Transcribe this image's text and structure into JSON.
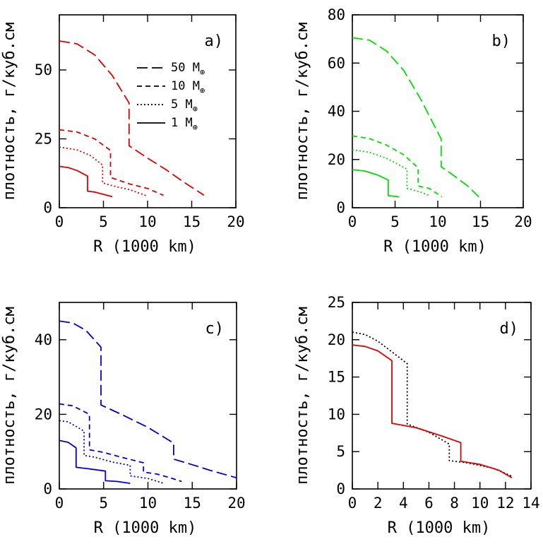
{
  "figure": {
    "background": "#ffffff"
  },
  "chart_data": [
    {
      "id": "a",
      "type": "line",
      "panel_label": "a)",
      "xlabel": "R (1000 km)",
      "ylabel": "плотность, г/куб.см",
      "xlim": [
        0,
        20
      ],
      "ylim": [
        0,
        70
      ],
      "xticks": [
        0,
        5,
        10,
        15,
        20
      ],
      "yticks": [
        0,
        25,
        50
      ],
      "color": "#e00000",
      "legend": {
        "placement": "right",
        "entries": [
          {
            "style": "longdash",
            "label": "50 M",
            "sub": "⊕"
          },
          {
            "style": "dash",
            "label": "10 M",
            "sub": "⊕"
          },
          {
            "style": "dot",
            "label": "5 M",
            "sub": "⊕"
          },
          {
            "style": "solid",
            "label": "1 M",
            "sub": "⊕"
          }
        ]
      },
      "series": [
        {
          "style": "longdash",
          "points": [
            [
              0,
              60.5
            ],
            [
              2,
              59.5
            ],
            [
              4,
              55.5
            ],
            [
              6,
              48
            ],
            [
              7.9,
              38
            ],
            [
              7.9,
              22.5
            ],
            [
              10,
              18
            ],
            [
              12,
              14
            ],
            [
              14,
              9.5
            ],
            [
              16.4,
              4.5
            ]
          ]
        },
        {
          "style": "dash",
          "points": [
            [
              0,
              28.3
            ],
            [
              2,
              27.5
            ],
            [
              4,
              25
            ],
            [
              5.8,
              20.8
            ],
            [
              5.8,
              11
            ],
            [
              8,
              8.6
            ],
            [
              10,
              7
            ],
            [
              11.8,
              4.5
            ]
          ]
        },
        {
          "style": "dot",
          "points": [
            [
              0,
              22
            ],
            [
              2,
              21
            ],
            [
              3.5,
              19
            ],
            [
              4.9,
              15.5
            ],
            [
              4.9,
              9
            ],
            [
              6,
              8
            ],
            [
              8,
              6.5
            ],
            [
              10,
              4.2
            ]
          ]
        },
        {
          "style": "solid",
          "points": [
            [
              0,
              15
            ],
            [
              1,
              14.6
            ],
            [
              2,
              13.5
            ],
            [
              3.2,
              11.5
            ],
            [
              3.2,
              6
            ],
            [
              4,
              5.7
            ],
            [
              6,
              4
            ]
          ]
        }
      ]
    },
    {
      "id": "b",
      "type": "line",
      "panel_label": "b)",
      "xlabel": "R (1000 km)",
      "ylabel": "плотность, г/куб.см",
      "xlim": [
        0,
        20
      ],
      "ylim": [
        0,
        80
      ],
      "xticks": [
        0,
        5,
        10,
        15,
        20
      ],
      "yticks": [
        0,
        20,
        40,
        60,
        80
      ],
      "color": "#00dd00",
      "series": [
        {
          "style": "longdash",
          "points": [
            [
              0,
              70.5
            ],
            [
              2,
              69.5
            ],
            [
              4,
              65
            ],
            [
              6,
              57
            ],
            [
              8,
              45
            ],
            [
              10.4,
              28.5
            ],
            [
              10.4,
              17
            ],
            [
              12,
              13
            ],
            [
              13.5,
              9
            ],
            [
              14.8,
              4.5
            ]
          ]
        },
        {
          "style": "dash",
          "points": [
            [
              0,
              29.8
            ],
            [
              2,
              28.7
            ],
            [
              4,
              26
            ],
            [
              6,
              22
            ],
            [
              7.7,
              16.5
            ],
            [
              7.7,
              9
            ],
            [
              9,
              8
            ],
            [
              10.5,
              4.5
            ]
          ]
        },
        {
          "style": "dot",
          "points": [
            [
              0,
              24
            ],
            [
              2,
              23
            ],
            [
              4,
              20.5
            ],
            [
              6.4,
              16
            ],
            [
              6.4,
              8
            ],
            [
              8,
              6.5
            ],
            [
              9,
              5
            ]
          ]
        },
        {
          "style": "solid",
          "points": [
            [
              0,
              15.8
            ],
            [
              1.5,
              15.2
            ],
            [
              3,
              13.5
            ],
            [
              4.2,
              11.5
            ],
            [
              4.2,
              5
            ],
            [
              5.5,
              4.5
            ]
          ]
        }
      ]
    },
    {
      "id": "c",
      "type": "line",
      "panel_label": "c)",
      "xlabel": "R (1000 km)",
      "ylabel": "плотность, г/куб.см",
      "xlim": [
        0,
        20
      ],
      "ylim": [
        0,
        50
      ],
      "xticks": [
        0,
        5,
        10,
        15,
        20
      ],
      "yticks": [
        0,
        20,
        40
      ],
      "color": "#0000dd",
      "series": [
        {
          "style": "longdash",
          "points": [
            [
              0,
              45
            ],
            [
              1.5,
              44.5
            ],
            [
              3,
              42.5
            ],
            [
              4.7,
              38
            ],
            [
              4.7,
              22.5
            ],
            [
              7,
              20
            ],
            [
              10,
              16.5
            ],
            [
              12.9,
              12.3
            ],
            [
              12.9,
              8
            ],
            [
              15,
              6.5
            ],
            [
              17,
              5
            ],
            [
              20,
              3
            ]
          ]
        },
        {
          "style": "dash",
          "points": [
            [
              0,
              22.8
            ],
            [
              1.5,
              22.3
            ],
            [
              3.4,
              20
            ],
            [
              3.4,
              10.5
            ],
            [
              5,
              9.8
            ],
            [
              7,
              8.5
            ],
            [
              9.5,
              7
            ],
            [
              9.5,
              4.5
            ],
            [
              11,
              4
            ],
            [
              12.5,
              3
            ],
            [
              13.8,
              2
            ]
          ]
        },
        {
          "style": "dot",
          "points": [
            [
              0,
              18.3
            ],
            [
              1,
              18
            ],
            [
              2.8,
              15.5
            ],
            [
              2.8,
              9
            ],
            [
              4,
              8.5
            ],
            [
              6,
              7.2
            ],
            [
              8,
              6.3
            ],
            [
              8,
              3.5
            ],
            [
              10,
              2.8
            ],
            [
              11.8,
              1.5
            ]
          ]
        },
        {
          "style": "solid",
          "points": [
            [
              0,
              13
            ],
            [
              1,
              12.5
            ],
            [
              1.9,
              11
            ],
            [
              1.9,
              5.8
            ],
            [
              3,
              5.5
            ],
            [
              5.2,
              4.8
            ],
            [
              5.2,
              2.2
            ],
            [
              6.5,
              2
            ],
            [
              8,
              1.5
            ]
          ]
        }
      ]
    },
    {
      "id": "d",
      "type": "line",
      "panel_label": "d)",
      "xlabel": "R (1000 km)",
      "ylabel": "плотность, г/куб.см",
      "xlim": [
        0,
        14
      ],
      "ylim": [
        0,
        25
      ],
      "xticks": [
        0,
        2,
        4,
        6,
        8,
        10,
        12,
        14
      ],
      "yticks": [
        0,
        5,
        10,
        15,
        20,
        25
      ],
      "series": [
        {
          "style": "dot",
          "color": "#000000",
          "points": [
            [
              0,
              21
            ],
            [
              1,
              20.7
            ],
            [
              2,
              19.8
            ],
            [
              3,
              18.5
            ],
            [
              4.3,
              16.8
            ],
            [
              4.3,
              8.7
            ],
            [
              6,
              7.6
            ],
            [
              7.6,
              6
            ],
            [
              7.6,
              3.8
            ],
            [
              9,
              3.5
            ],
            [
              11,
              2.8
            ],
            [
              12.5,
              1.7
            ]
          ]
        },
        {
          "style": "solid",
          "color": "#e00000",
          "points": [
            [
              0,
              19.3
            ],
            [
              1,
              19.1
            ],
            [
              2,
              18.5
            ],
            [
              3.1,
              17.2
            ],
            [
              3.1,
              8.8
            ],
            [
              5,
              8.2
            ],
            [
              7,
              7.1
            ],
            [
              8.5,
              6.2
            ],
            [
              8.5,
              3.7
            ],
            [
              10,
              3.3
            ],
            [
              11.5,
              2.5
            ],
            [
              12.5,
              1.5
            ]
          ]
        }
      ]
    }
  ]
}
